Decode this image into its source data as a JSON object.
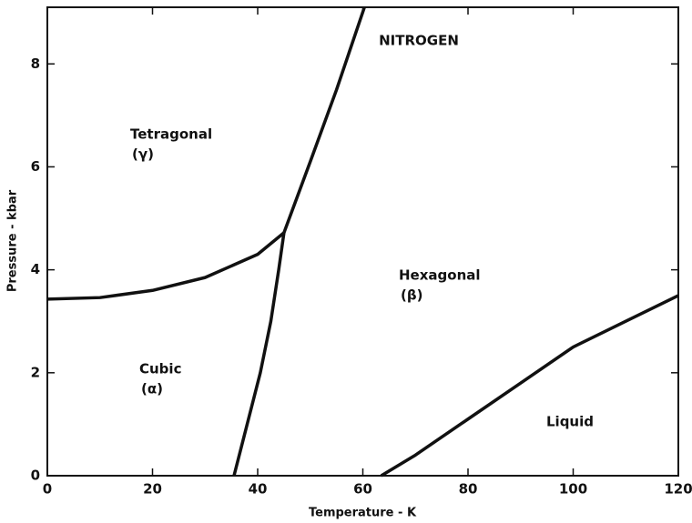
{
  "chart_data": {
    "type": "line",
    "title": "NITROGEN",
    "xlabel": "Temperature - K",
    "ylabel": "Pressure - kbar",
    "xlim": [
      0,
      120
    ],
    "xticks": [
      0,
      20,
      40,
      60,
      80,
      100,
      120
    ],
    "ylim": [
      0,
      9.1
    ],
    "yticks": [
      0,
      2,
      4,
      6,
      8
    ],
    "annotations": [
      "Tetragonal",
      "(γ)",
      "Cubic",
      "(α)",
      "Hexagonal",
      "(β)",
      "Liquid"
    ],
    "series": [
      {
        "color": "#111111",
        "x": [
          0,
          10,
          20,
          30,
          40,
          45
        ],
        "values": [
          3.43,
          3.46,
          3.6,
          3.85,
          4.3,
          4.72
        ]
      },
      {
        "color": "#111111",
        "x": [
          35.5,
          38,
          40.5,
          42.5,
          44,
          45
        ],
        "values": [
          0,
          1,
          2,
          3,
          4,
          4.72
        ]
      },
      {
        "color": "#111111",
        "x": [
          45,
          50,
          55,
          60.3
        ],
        "values": [
          4.72,
          6.1,
          7.5,
          9.1
        ]
      },
      {
        "color": "#111111",
        "x": [
          63.5,
          70,
          80,
          90,
          100,
          110,
          120
        ],
        "values": [
          0,
          0.4,
          1.1,
          1.8,
          2.5,
          3.0,
          3.5
        ]
      }
    ]
  }
}
